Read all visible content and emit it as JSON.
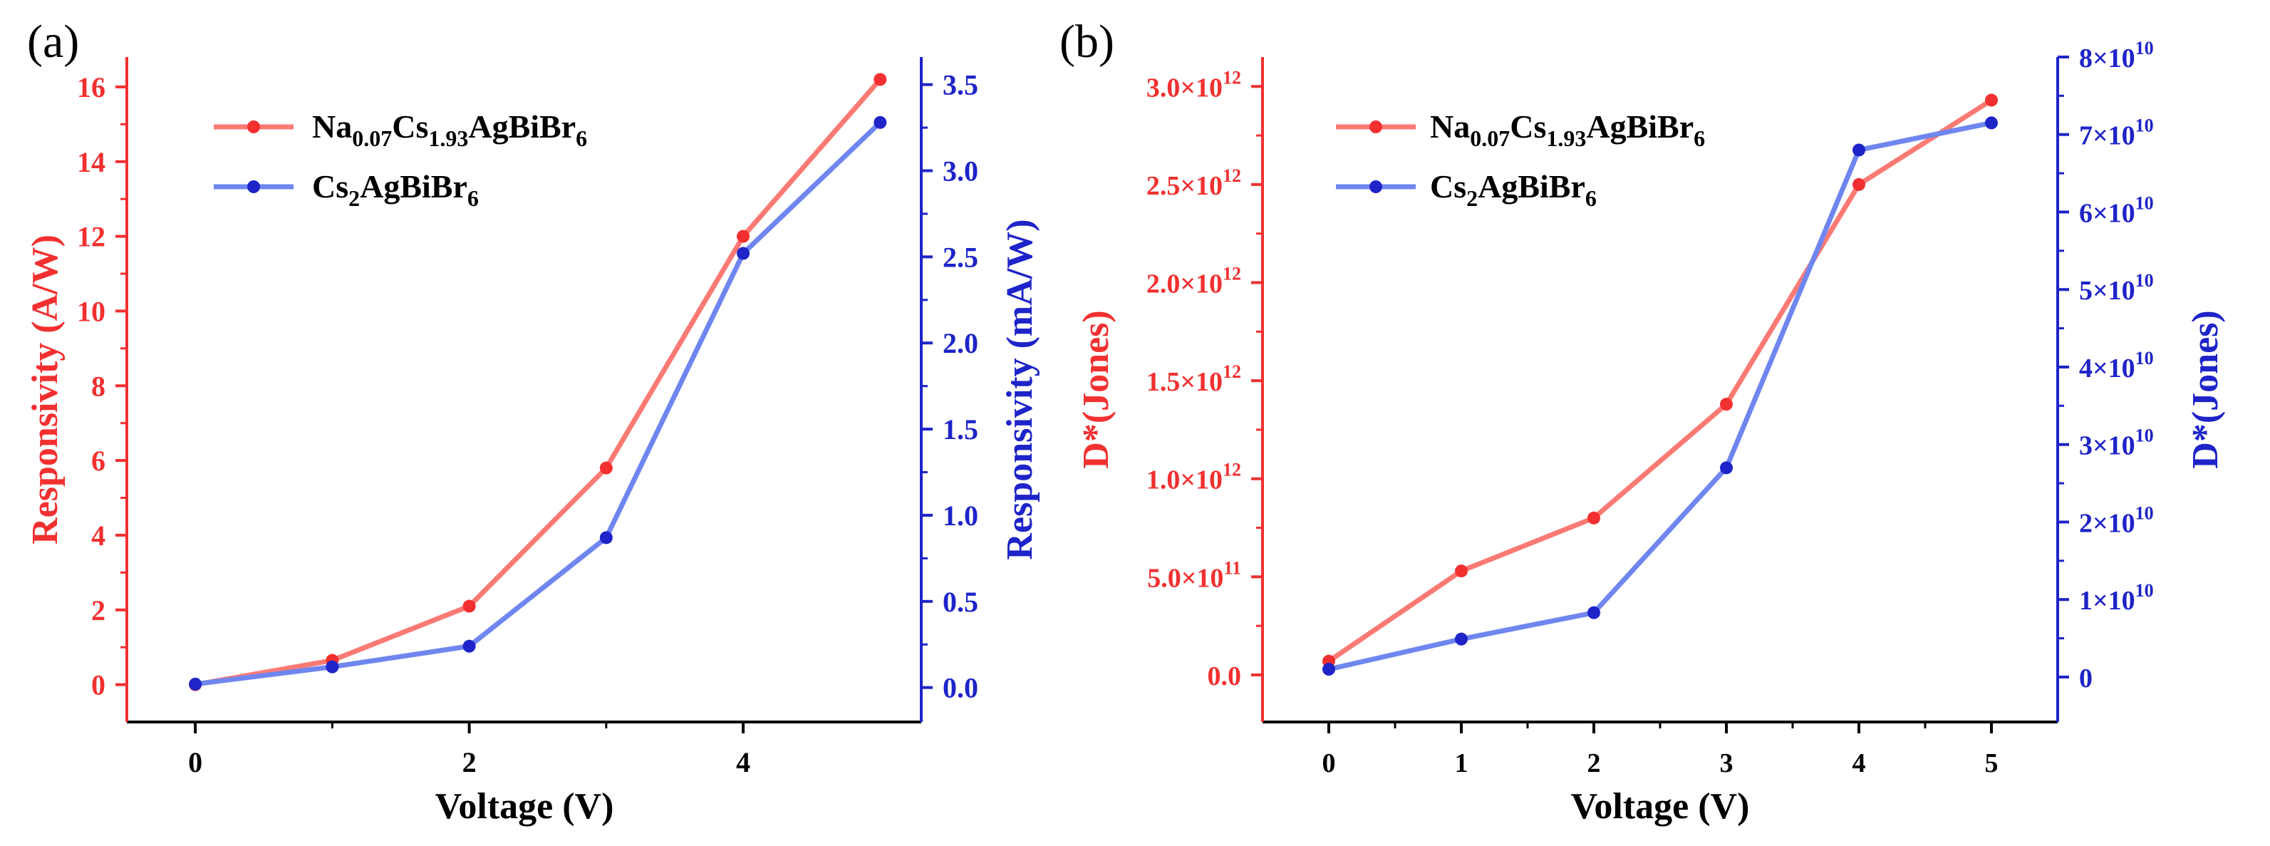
{
  "colors": {
    "red": "#f23030",
    "red_line": "#fb7a74",
    "blue": "#1e24c8",
    "blue_line": "#6f86f0",
    "axis": "#000000"
  },
  "chart_data": [
    {
      "panel_label": "(a)",
      "type": "line",
      "xlabel": "Voltage (V)",
      "ylabel_left": "Responsivity (A/W)",
      "ylabel_right": "Responsivity (mA/W)",
      "xlim": [
        -0.5,
        5.3
      ],
      "ylim_left": [
        -1.0,
        16.8
      ],
      "ylim_right": [
        -0.2,
        3.66
      ],
      "x_ticks": [
        0,
        2,
        4
      ],
      "x_tick_labels": [
        "0",
        "2",
        "4"
      ],
      "y_left_ticks": [
        0,
        2,
        4,
        6,
        8,
        10,
        12,
        14,
        16
      ],
      "y_left_tick_labels": [
        "0",
        "2",
        "4",
        "6",
        "8",
        "10",
        "12",
        "14",
        "16"
      ],
      "y_right_ticks": [
        0,
        0.5,
        1.0,
        1.5,
        2.0,
        2.5,
        3.0,
        3.5
      ],
      "y_right_tick_labels": [
        "0.0",
        "0.5",
        "1.0",
        "1.5",
        "2.0",
        "2.5",
        "3.0",
        "3.5"
      ],
      "legend": [
        {
          "main": "Na",
          "sub1": "0.07",
          "mid": "Cs",
          "sub2": "1.93",
          "tail": "AgBiBr",
          "sub3": "6"
        },
        {
          "main": "Cs",
          "sub1": "2",
          "mid": "AgBiBr",
          "sub2": "6",
          "tail": "",
          "sub3": ""
        }
      ],
      "series": [
        {
          "name": "Na0.07Cs1.93AgBiBr6",
          "axis": "left",
          "x": [
            0,
            1,
            2,
            3,
            4,
            5
          ],
          "values": [
            0.0,
            0.65,
            2.1,
            5.8,
            12.0,
            16.2
          ]
        },
        {
          "name": "Cs2AgBiBr6",
          "axis": "right",
          "x": [
            0,
            1,
            2,
            3,
            4,
            5
          ],
          "values": [
            0.02,
            0.12,
            0.24,
            0.87,
            2.52,
            3.28
          ]
        }
      ]
    },
    {
      "panel_label": "(b)",
      "type": "line",
      "xlabel": "Voltage (V)",
      "ylabel_left": "D*(Jones)",
      "ylabel_right": "D*(Jones)",
      "xlim": [
        -0.5,
        5.5
      ],
      "ylim_left": [
        -240000000000.0,
        3150000000000.0
      ],
      "ylim_right": [
        -5800000000.0,
        80000000000.0
      ],
      "x_ticks": [
        0,
        1,
        2,
        3,
        4,
        5
      ],
      "x_tick_labels": [
        "0",
        "1",
        "2",
        "3",
        "4",
        "5"
      ],
      "y_left_ticks": [
        0,
        500000000000.0,
        1000000000000.0,
        1500000000000.0,
        2000000000000.0,
        2500000000000.0,
        3000000000000.0
      ],
      "y_left_tick_labels": [
        {
          "mant": "0.0",
          "exp": ""
        },
        {
          "mant": "5.0×10",
          "exp": "11"
        },
        {
          "mant": "1.0×10",
          "exp": "12"
        },
        {
          "mant": "1.5×10",
          "exp": "12"
        },
        {
          "mant": "2.0×10",
          "exp": "12"
        },
        {
          "mant": "2.5×10",
          "exp": "12"
        },
        {
          "mant": "3.0×10",
          "exp": "12"
        }
      ],
      "y_right_ticks": [
        0,
        10000000000.0,
        20000000000.0,
        30000000000.0,
        40000000000.0,
        50000000000.0,
        60000000000.0,
        70000000000.0,
        80000000000.0
      ],
      "y_right_tick_labels": [
        {
          "mant": "0",
          "exp": ""
        },
        {
          "mant": "1×10",
          "exp": "10"
        },
        {
          "mant": "2×10",
          "exp": "10"
        },
        {
          "mant": "3×10",
          "exp": "10"
        },
        {
          "mant": "4×10",
          "exp": "10"
        },
        {
          "mant": "5×10",
          "exp": "10"
        },
        {
          "mant": "6×10",
          "exp": "10"
        },
        {
          "mant": "7×10",
          "exp": "10"
        },
        {
          "mant": "8×10",
          "exp": "10"
        }
      ],
      "legend": [
        {
          "main": "Na",
          "sub1": "0.07",
          "mid": "Cs",
          "sub2": "1.93",
          "tail": "AgBiBr",
          "sub3": "6"
        },
        {
          "main": "Cs",
          "sub1": "2",
          "mid": "AgBiBr",
          "sub2": "6",
          "tail": "",
          "sub3": ""
        }
      ],
      "series": [
        {
          "name": "Na0.07Cs1.93AgBiBr6",
          "axis": "left",
          "x": [
            0,
            1,
            2,
            3,
            4,
            5
          ],
          "values": [
            70000000000.0,
            530000000000.0,
            800000000000.0,
            1380000000000.0,
            2500000000000.0,
            2930000000000.0
          ]
        },
        {
          "name": "Cs2AgBiBr6",
          "axis": "right",
          "x": [
            0,
            1,
            2,
            3,
            4,
            5
          ],
          "values": [
            1000000000.0,
            4900000000.0,
            8300000000.0,
            27000000000.0,
            68000000000.0,
            71500000000.0
          ]
        }
      ]
    }
  ]
}
